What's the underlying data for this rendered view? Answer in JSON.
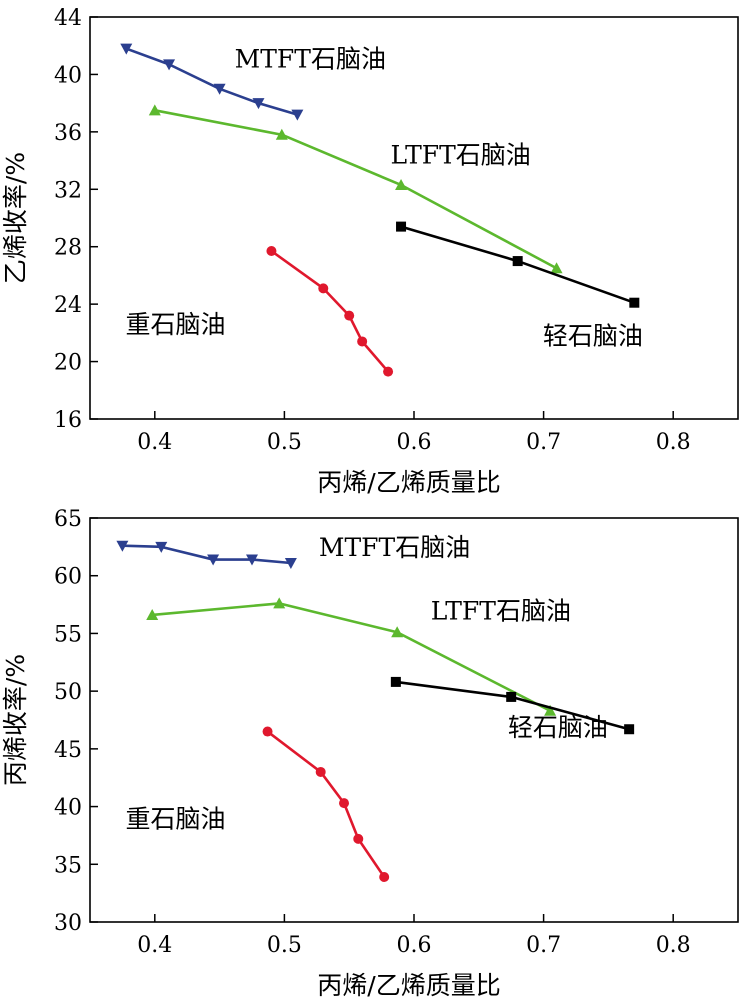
{
  "chart_data": [
    {
      "type": "line",
      "xlabel": "丙烯/乙烯质量比",
      "ylabel": "乙烯收率/%",
      "xlim": [
        0.35,
        0.85
      ],
      "ylim": [
        16,
        44
      ],
      "xticks": [
        0.4,
        0.5,
        0.6,
        0.7,
        0.8
      ],
      "xtick_labels": [
        "0.4",
        "0.5",
        "0.6",
        "0.7",
        "0.8"
      ],
      "yticks": [
        16,
        20,
        24,
        28,
        32,
        36,
        40,
        44
      ],
      "ytick_labels": [
        "16",
        "20",
        "24",
        "28",
        "32",
        "36",
        "40",
        "44"
      ],
      "grid": false,
      "series": [
        {
          "name": "MTFT石脑油",
          "color": "#2b3f8f",
          "marker": "triangle-down",
          "x": [
            0.378,
            0.411,
            0.45,
            0.48,
            0.51
          ],
          "y": [
            41.8,
            40.7,
            39.0,
            38.0,
            37.2
          ]
        },
        {
          "name": "LTFT石脑油",
          "color": "#5cb82e",
          "marker": "triangle-up",
          "x": [
            0.4,
            0.498,
            0.59,
            0.71
          ],
          "y": [
            37.5,
            35.8,
            32.3,
            26.5
          ]
        },
        {
          "name": "重石脑油",
          "color": "#e0182d",
          "marker": "circle",
          "x": [
            0.49,
            0.53,
            0.55,
            0.56,
            0.58
          ],
          "y": [
            27.7,
            25.1,
            23.2,
            21.4,
            19.3
          ]
        },
        {
          "name": "轻石脑油",
          "color": "#000000",
          "marker": "square",
          "x": [
            0.59,
            0.68,
            0.77
          ],
          "y": [
            29.4,
            27.0,
            24.1
          ]
        }
      ],
      "annotations": [
        {
          "series": "MTFT石脑油",
          "x": 0.52,
          "y": 40.5
        },
        {
          "series": "LTFT石脑油",
          "x": 0.636,
          "y": 33.8
        },
        {
          "series": "重石脑油",
          "x": 0.416,
          "y": 22.0
        },
        {
          "series": "轻石脑油",
          "x": 0.738,
          "y": 21.2
        }
      ]
    },
    {
      "type": "line",
      "xlabel": "丙烯/乙烯质量比",
      "ylabel": "丙烯收率/%",
      "xlim": [
        0.35,
        0.85
      ],
      "ylim": [
        30,
        65
      ],
      "xticks": [
        0.4,
        0.5,
        0.6,
        0.7,
        0.8
      ],
      "xtick_labels": [
        "0.4",
        "0.5",
        "0.6",
        "0.7",
        "0.8"
      ],
      "yticks": [
        30,
        35,
        40,
        45,
        50,
        55,
        60,
        65
      ],
      "ytick_labels": [
        "30",
        "35",
        "40",
        "45",
        "50",
        "55",
        "60",
        "65"
      ],
      "grid": false,
      "series": [
        {
          "name": "MTFT石脑油",
          "color": "#2b3f8f",
          "marker": "triangle-down",
          "x": [
            0.375,
            0.405,
            0.445,
            0.475,
            0.505
          ],
          "y": [
            62.6,
            62.5,
            61.4,
            61.4,
            61.1
          ]
        },
        {
          "name": "LTFT石脑油",
          "color": "#5cb82e",
          "marker": "triangle-up",
          "x": [
            0.398,
            0.496,
            0.587,
            0.705
          ],
          "y": [
            56.6,
            57.6,
            55.1,
            48.3
          ]
        },
        {
          "name": "重石脑油",
          "color": "#e0182d",
          "marker": "circle",
          "x": [
            0.487,
            0.528,
            0.546,
            0.557,
            0.577
          ],
          "y": [
            46.5,
            43.0,
            40.3,
            37.2,
            33.9
          ]
        },
        {
          "name": "轻石脑油",
          "color": "#000000",
          "marker": "square",
          "x": [
            0.586,
            0.675,
            0.766
          ],
          "y": [
            50.8,
            49.5,
            46.7
          ]
        }
      ],
      "annotations": [
        {
          "series": "MTFT石脑油",
          "x": 0.585,
          "y": 61.7
        },
        {
          "series": "LTFT石脑油",
          "x": 0.667,
          "y": 56.2
        },
        {
          "series": "重石脑油",
          "x": 0.416,
          "y": 38.2
        },
        {
          "series": "轻石脑油",
          "x": 0.711,
          "y": 46.1
        }
      ]
    }
  ]
}
